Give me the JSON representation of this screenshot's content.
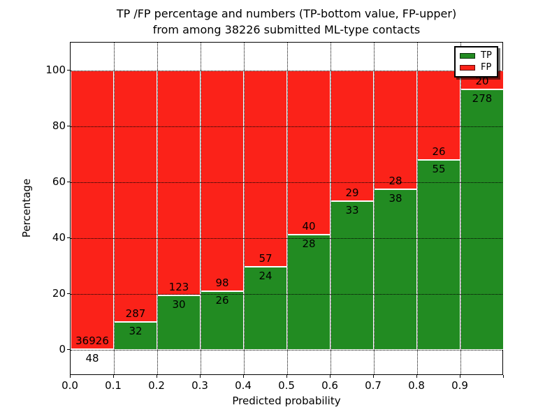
{
  "chart_data": {
    "type": "bar",
    "stacked": true,
    "title_line1": "TP /FP percentage and numbers (TP-bottom value, FP-upper)",
    "title_line2": "from among 38226 submitted ML-type contacts",
    "total_submitted": 38226,
    "xlabel": "Predicted probability",
    "ylabel": "Percentage",
    "x_tick_labels": [
      "0.0",
      "0.1",
      "0.2",
      "0.3",
      "0.4",
      "0.5",
      "0.6",
      "0.7",
      "0.8",
      "0.9"
    ],
    "y_ticks": [
      0,
      20,
      40,
      60,
      80,
      100
    ],
    "y_tick_labels": [
      "0",
      "20",
      "40",
      "60",
      "80",
      "100"
    ],
    "ylim": [
      -9.25,
      110
    ],
    "xlim": [
      0.0,
      1.0
    ],
    "grid": true,
    "categories": [
      "0.0-0.1",
      "0.1-0.2",
      "0.2-0.3",
      "0.3-0.4",
      "0.4-0.5",
      "0.5-0.6",
      "0.6-0.7",
      "0.7-0.8",
      "0.8-0.9",
      "0.9-1.0"
    ],
    "series": [
      {
        "name": "TP",
        "color": "#228b22",
        "values": [
          48,
          32,
          30,
          26,
          24,
          28,
          33,
          38,
          55,
          278
        ]
      },
      {
        "name": "FP",
        "color": "#fb2219",
        "values": [
          36926,
          287,
          123,
          98,
          57,
          40,
          29,
          28,
          26,
          20
        ]
      }
    ],
    "tp_percent": [
      0.13,
      10.03,
      19.61,
      20.97,
      29.63,
      41.18,
      53.23,
      57.58,
      67.9,
      93.29
    ],
    "legend": {
      "position": "upper right",
      "entries": [
        "TP",
        "FP"
      ],
      "colors": [
        "#228b22",
        "#fb2219"
      ]
    }
  }
}
